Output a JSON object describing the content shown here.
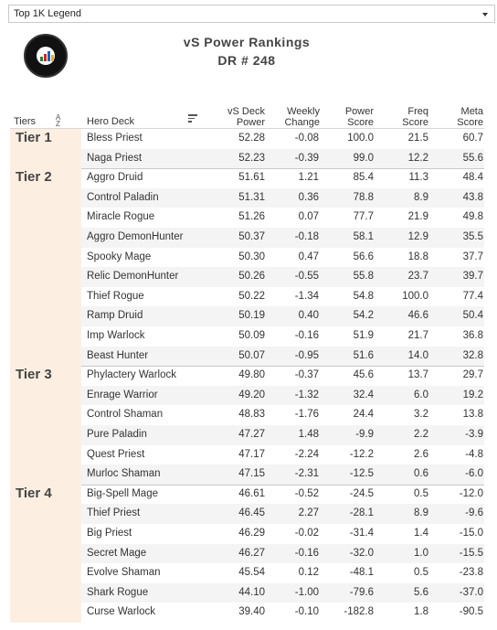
{
  "filter": {
    "selected": "Top 1K Legend"
  },
  "header": {
    "title": "vS Power Rankings",
    "subtitle": "DR # 248"
  },
  "columns": {
    "tiers": "Tiers",
    "deck": "Hero Deck",
    "power_l1": "vS Deck",
    "power_l2": "Power",
    "weekly_l1": "Weekly",
    "weekly_l2": "Change",
    "score_l1": "Power",
    "score_l2": "Score",
    "freq_l1": "Freq",
    "freq_l2": "Score",
    "meta_l1": "Meta",
    "meta_l2": "Score"
  },
  "tiers": [
    {
      "label": "Tier 1",
      "decks": [
        {
          "deck": "Bless Priest",
          "power": "52.28",
          "weekly": "-0.08",
          "score": "100.0",
          "freq": "21.5",
          "meta": "60.7"
        },
        {
          "deck": "Naga Priest",
          "power": "52.23",
          "weekly": "-0.39",
          "score": "99.0",
          "freq": "12.2",
          "meta": "55.6"
        }
      ]
    },
    {
      "label": "Tier 2",
      "decks": [
        {
          "deck": "Aggro Druid",
          "power": "51.61",
          "weekly": "1.21",
          "score": "85.4",
          "freq": "11.3",
          "meta": "48.4"
        },
        {
          "deck": "Control Paladin",
          "power": "51.31",
          "weekly": "0.36",
          "score": "78.8",
          "freq": "8.9",
          "meta": "43.8"
        },
        {
          "deck": "Miracle Rogue",
          "power": "51.26",
          "weekly": "0.07",
          "score": "77.7",
          "freq": "21.9",
          "meta": "49.8"
        },
        {
          "deck": "Aggro DemonHunter",
          "power": "50.37",
          "weekly": "-0.18",
          "score": "58.1",
          "freq": "12.9",
          "meta": "35.5"
        },
        {
          "deck": "Spooky Mage",
          "power": "50.30",
          "weekly": "0.47",
          "score": "56.6",
          "freq": "18.8",
          "meta": "37.7"
        },
        {
          "deck": "Relic DemonHunter",
          "power": "50.26",
          "weekly": "-0.55",
          "score": "55.8",
          "freq": "23.7",
          "meta": "39.7"
        },
        {
          "deck": "Thief Rogue",
          "power": "50.22",
          "weekly": "-1.34",
          "score": "54.8",
          "freq": "100.0",
          "meta": "77.4"
        },
        {
          "deck": "Ramp Druid",
          "power": "50.19",
          "weekly": "0.40",
          "score": "54.2",
          "freq": "46.6",
          "meta": "50.4"
        },
        {
          "deck": "Imp Warlock",
          "power": "50.09",
          "weekly": "-0.16",
          "score": "51.9",
          "freq": "21.7",
          "meta": "36.8"
        },
        {
          "deck": "Beast Hunter",
          "power": "50.07",
          "weekly": "-0.95",
          "score": "51.6",
          "freq": "14.0",
          "meta": "32.8"
        }
      ]
    },
    {
      "label": "Tier 3",
      "decks": [
        {
          "deck": "Phylactery Warlock",
          "power": "49.80",
          "weekly": "-0.37",
          "score": "45.6",
          "freq": "13.7",
          "meta": "29.7"
        },
        {
          "deck": "Enrage Warrior",
          "power": "49.20",
          "weekly": "-1.32",
          "score": "32.4",
          "freq": "6.0",
          "meta": "19.2"
        },
        {
          "deck": "Control Shaman",
          "power": "48.83",
          "weekly": "-1.76",
          "score": "24.4",
          "freq": "3.2",
          "meta": "13.8"
        },
        {
          "deck": "Pure Paladin",
          "power": "47.27",
          "weekly": "1.48",
          "score": "-9.9",
          "freq": "2.2",
          "meta": "-3.9"
        },
        {
          "deck": "Quest Priest",
          "power": "47.17",
          "weekly": "-2.24",
          "score": "-12.2",
          "freq": "2.6",
          "meta": "-4.8"
        },
        {
          "deck": "Murloc Shaman",
          "power": "47.15",
          "weekly": "-2.31",
          "score": "-12.5",
          "freq": "0.6",
          "meta": "-6.0"
        }
      ]
    },
    {
      "label": "Tier 4",
      "decks": [
        {
          "deck": "Big-Spell Mage",
          "power": "46.61",
          "weekly": "-0.52",
          "score": "-24.5",
          "freq": "0.5",
          "meta": "-12.0"
        },
        {
          "deck": "Thief Priest",
          "power": "46.45",
          "weekly": "2.27",
          "score": "-28.1",
          "freq": "8.9",
          "meta": "-9.6"
        },
        {
          "deck": "Big Priest",
          "power": "46.29",
          "weekly": "-0.02",
          "score": "-31.4",
          "freq": "1.4",
          "meta": "-15.0"
        },
        {
          "deck": "Secret Mage",
          "power": "46.27",
          "weekly": "-0.16",
          "score": "-32.0",
          "freq": "1.0",
          "meta": "-15.5"
        },
        {
          "deck": "Evolve Shaman",
          "power": "45.54",
          "weekly": "0.12",
          "score": "-48.1",
          "freq": "0.5",
          "meta": "-23.8"
        },
        {
          "deck": "Shark Rogue",
          "power": "44.10",
          "weekly": "-1.00",
          "score": "-79.6",
          "freq": "5.6",
          "meta": "-37.0"
        },
        {
          "deck": "Curse Warlock",
          "power": "39.40",
          "weekly": "-0.10",
          "score": "-182.8",
          "freq": "1.8",
          "meta": "-90.5"
        }
      ]
    }
  ]
}
